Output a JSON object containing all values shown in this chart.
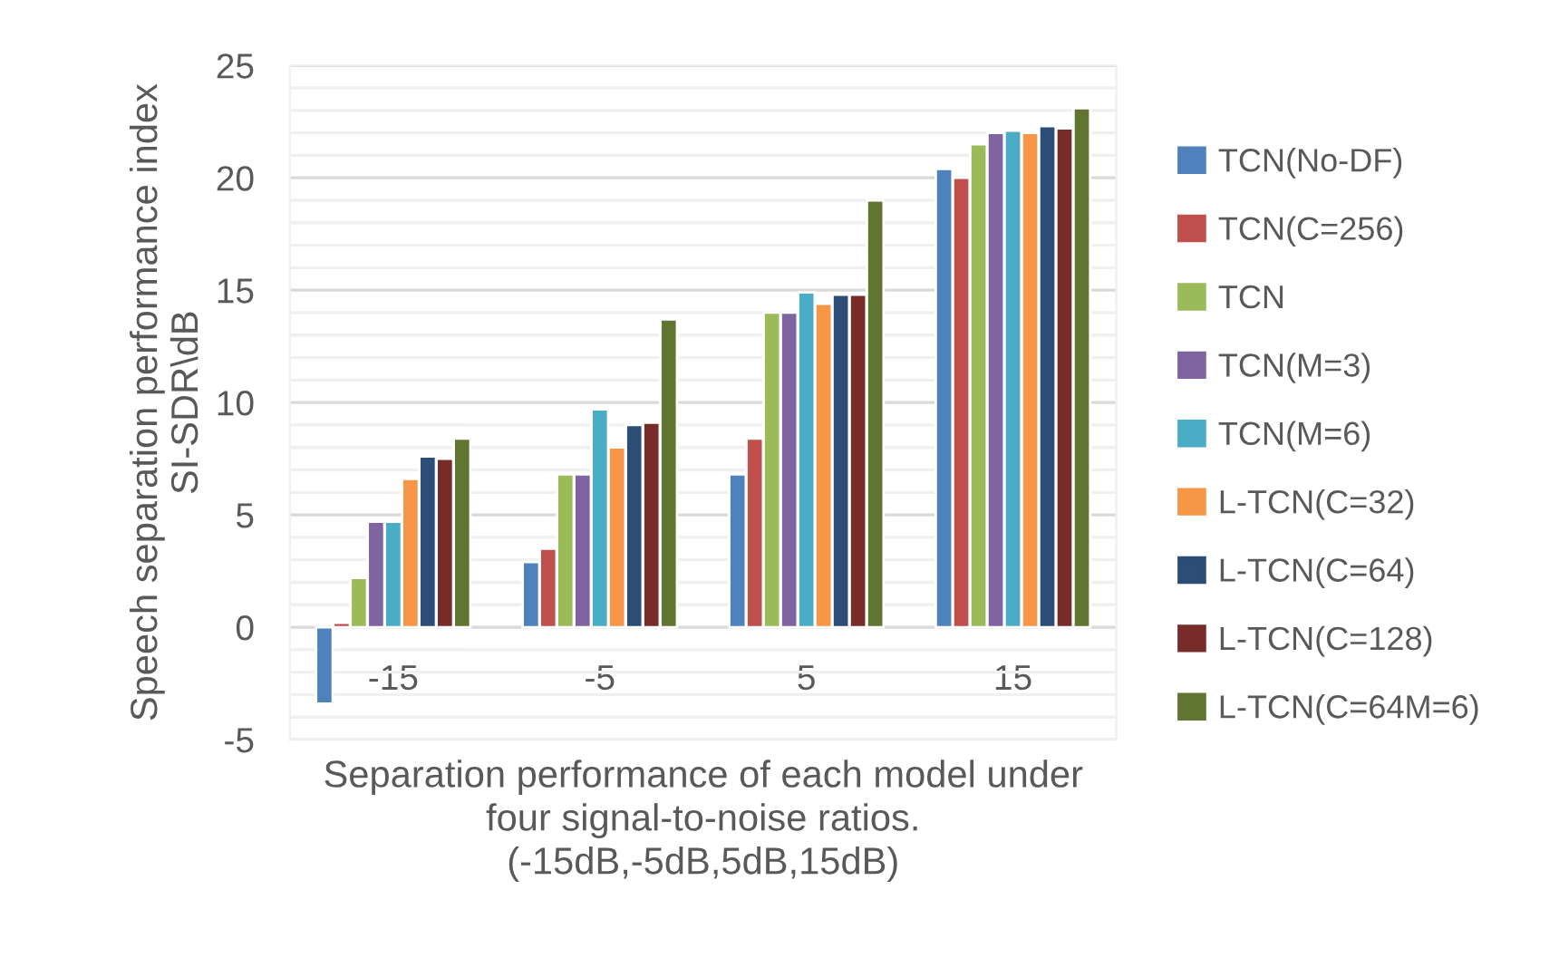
{
  "chart_data": {
    "type": "bar",
    "xlabel": "Separation performance of each model under\nfour signal-to-noise ratios.\n(-15dB,-5dB,5dB,15dB)",
    "ylabel": "Speech separation performance index\nSI-SDR\\dB",
    "categories": [
      "-15",
      "-5",
      "5",
      "15"
    ],
    "series": [
      {
        "name": "TCN(No-DF)",
        "color": "#4f81bd",
        "values": [
          -3.4,
          2.9,
          6.8,
          20.4
        ]
      },
      {
        "name": "TCN(C=256)",
        "color": "#c0504d",
        "values": [
          0.2,
          3.5,
          8.4,
          20.0
        ]
      },
      {
        "name": "TCN",
        "color": "#9bbb59",
        "values": [
          2.2,
          6.8,
          14.0,
          21.5
        ]
      },
      {
        "name": "TCN(M=3)",
        "color": "#8064a2",
        "values": [
          4.7,
          6.8,
          14.0,
          22.0
        ]
      },
      {
        "name": "TCN(M=6)",
        "color": "#4bacc6",
        "values": [
          4.7,
          9.7,
          14.9,
          22.1
        ]
      },
      {
        "name": "L-TCN(C=32)",
        "color": "#f79646",
        "values": [
          6.6,
          8.0,
          14.4,
          22.0
        ]
      },
      {
        "name": "L-TCN(C=64)",
        "color": "#2c4d75",
        "values": [
          7.6,
          9.0,
          14.8,
          22.3
        ]
      },
      {
        "name": "L-TCN(C=128)",
        "color": "#772c2a",
        "values": [
          7.5,
          9.1,
          14.8,
          22.2
        ]
      },
      {
        "name": "L-TCN(C=64M=6)",
        "color": "#5f7530",
        "values": [
          8.4,
          13.7,
          19.0,
          23.1
        ]
      }
    ],
    "ylim": [
      -5,
      25
    ],
    "yticks": [
      -5,
      0,
      5,
      10,
      15,
      20,
      25
    ],
    "grid": "y",
    "legend": "right"
  }
}
